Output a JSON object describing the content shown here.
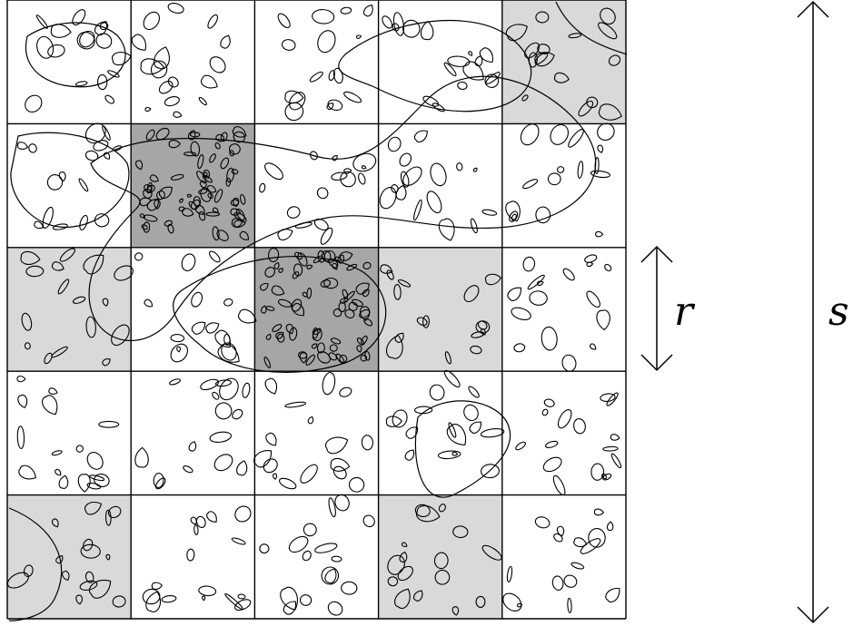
{
  "figure": {
    "grid": {
      "rows": 5,
      "cols": 5
    },
    "shaded_cells": {
      "light": [
        [
          0,
          4
        ],
        [
          2,
          0
        ],
        [
          2,
          3
        ],
        [
          4,
          0
        ],
        [
          4,
          3
        ]
      ],
      "dark": [
        [
          1,
          1
        ],
        [
          2,
          2
        ]
      ]
    },
    "colors": {
      "light_shade": "#d9d9d9",
      "dark_shade": "#a6a6a6",
      "ink": "#000000",
      "background": "#ffffff"
    },
    "labels": {
      "cell_size": "r",
      "domain_size": "s"
    }
  }
}
